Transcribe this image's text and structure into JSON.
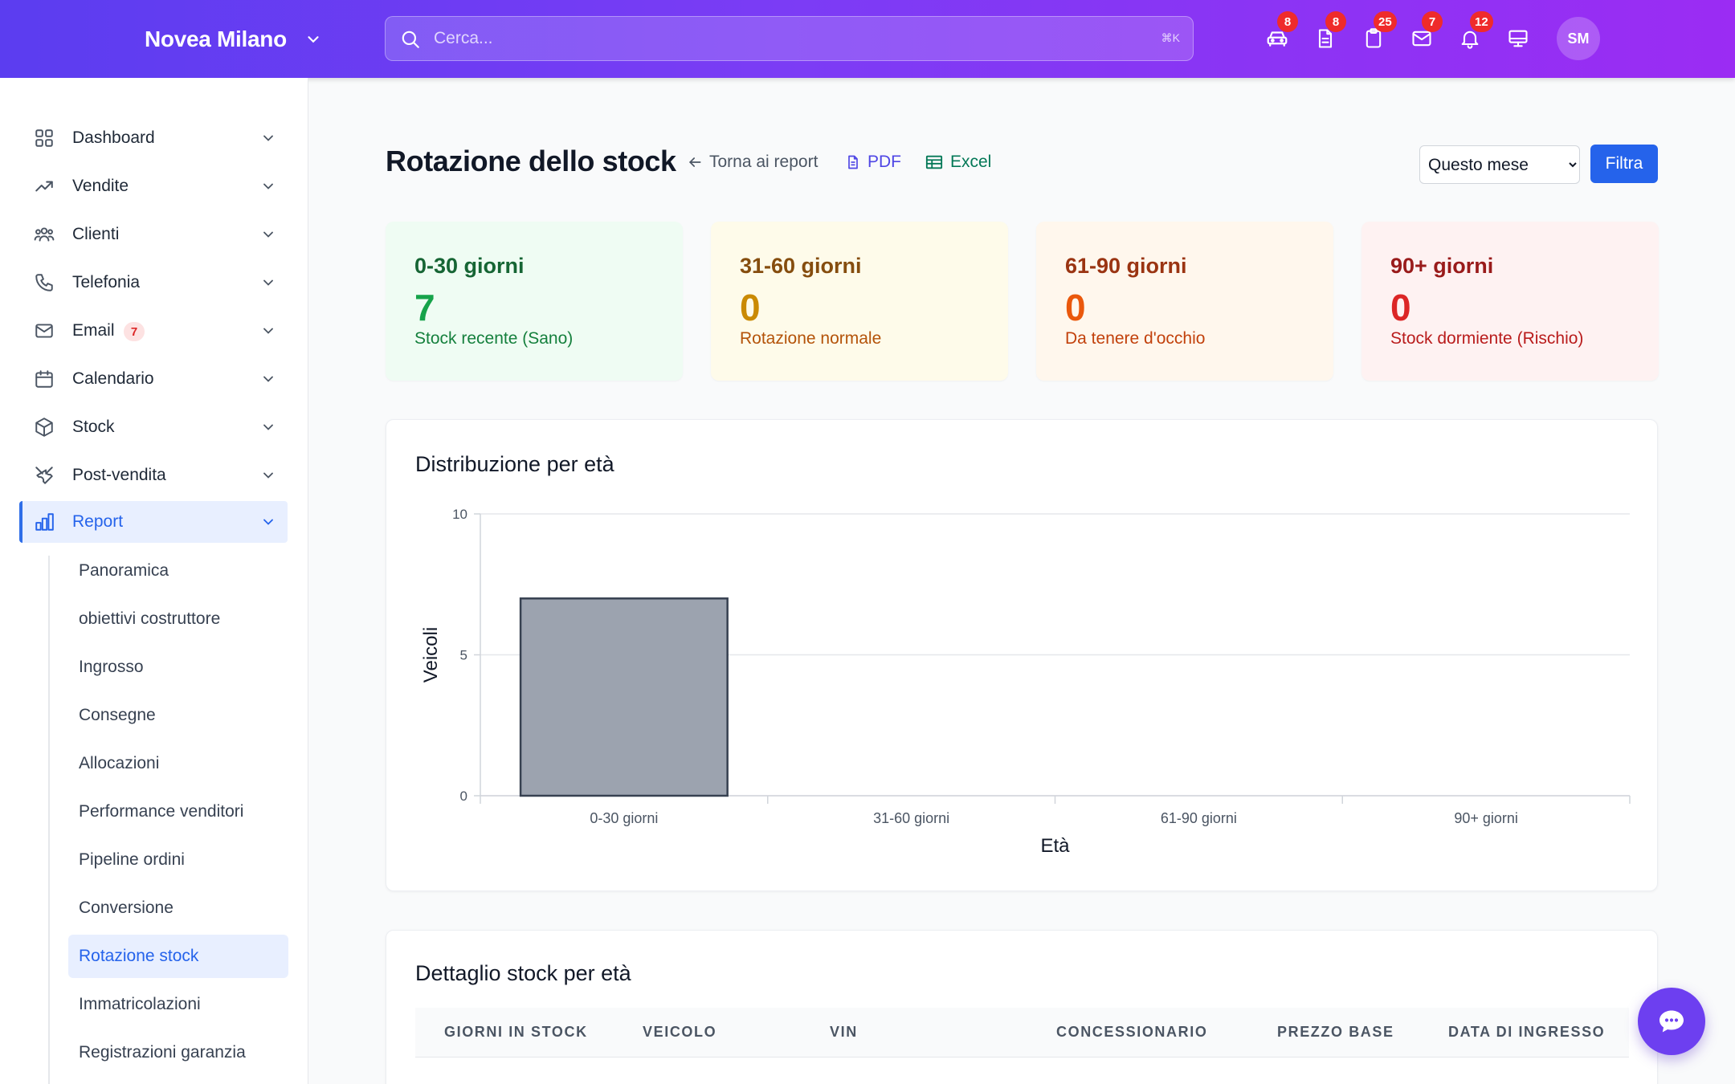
{
  "header": {
    "brand": "Novea Milano",
    "search_placeholder": "Cerca...",
    "search_shortcut": "⌘K",
    "icons": [
      {
        "name": "car-icon",
        "badge": "8"
      },
      {
        "name": "document-icon",
        "badge": "8"
      },
      {
        "name": "clipboard-icon",
        "badge": "25"
      },
      {
        "name": "mail-icon",
        "badge": "7"
      },
      {
        "name": "bell-icon",
        "badge": "12"
      },
      {
        "name": "monitor-icon",
        "badge": ""
      }
    ],
    "avatar_initials": "SM"
  },
  "sidebar": {
    "items": [
      {
        "label": "Dashboard",
        "icon": "grid-icon"
      },
      {
        "label": "Vendite",
        "icon": "trending-up-icon"
      },
      {
        "label": "Clienti",
        "icon": "users-icon"
      },
      {
        "label": "Telefonia",
        "icon": "phone-icon"
      },
      {
        "label": "Email",
        "icon": "mail-icon",
        "count": "7"
      },
      {
        "label": "Calendario",
        "icon": "calendar-icon"
      },
      {
        "label": "Stock",
        "icon": "box-icon"
      },
      {
        "label": "Post-vendita",
        "icon": "tools-icon"
      },
      {
        "label": "Report",
        "icon": "bar-chart-icon",
        "active": true
      }
    ],
    "report_subitems": [
      "Panoramica",
      "obiettivi costruttore",
      "Ingrosso",
      "Consegne",
      "Allocazioni",
      "Performance venditori",
      "Pipeline ordini",
      "Conversione",
      "Rotazione stock",
      "Immatricolazioni",
      "Registrazioni garanzia"
    ],
    "active_subitem": "Rotazione stock"
  },
  "page": {
    "title": "Rotazione dello stock",
    "back_link": "Torna ai report",
    "pdf_link": "PDF",
    "excel_link": "Excel",
    "period_selected": "Questo mese",
    "filter_button": "Filtra"
  },
  "kpis": [
    {
      "title": "0-30 giorni",
      "value": "7",
      "subtitle": "Stock recente (Sano)",
      "bg": "#effcf3",
      "title_color": "#166534",
      "value_color": "#16a34a",
      "sub_color": "#15803d"
    },
    {
      "title": "31-60 giorni",
      "value": "0",
      "subtitle": "Rotazione normale",
      "bg": "#fefbea",
      "title_color": "#854d0e",
      "value_color": "#ca8a04",
      "sub_color": "#b45309"
    },
    {
      "title": "61-90 giorni",
      "value": "0",
      "subtitle": "Da tenere d'occhio",
      "bg": "#fff7ed",
      "title_color": "#9a3412",
      "value_color": "#ea580c",
      "sub_color": "#c2410c"
    },
    {
      "title": "90+ giorni",
      "value": "0",
      "subtitle": "Stock dormiente (Rischio)",
      "bg": "#fef2f2",
      "title_color": "#991b1b",
      "value_color": "#dc2626",
      "sub_color": "#b91c1c"
    }
  ],
  "chart_card_title": "Distribuzione per età",
  "chart_data": {
    "type": "bar",
    "categories": [
      "0-30 giorni",
      "31-60 giorni",
      "61-90 giorni",
      "90+ giorni"
    ],
    "values": [
      7,
      0,
      0,
      0
    ],
    "xlabel": "Età",
    "ylabel": "Veicoli",
    "ylim": [
      0,
      10
    ],
    "yticks": [
      0,
      5,
      10
    ],
    "grid": true,
    "bar_color": "#9ca3af",
    "bar_border": "#374151"
  },
  "table": {
    "title": "Dettaglio stock per età",
    "columns": [
      "GIORNI IN STOCK",
      "VEICOLO",
      "VIN",
      "CONCESSIONARIO",
      "PREZZO BASE",
      "DATA DI INGRESSO"
    ]
  }
}
